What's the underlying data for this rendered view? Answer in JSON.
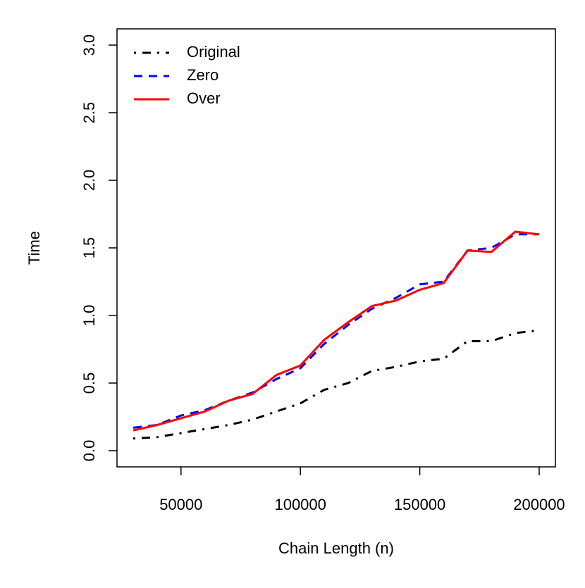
{
  "chart_data": {
    "type": "line",
    "x_label": "Chain Length (n)",
    "y_label": "Time",
    "x": [
      30000,
      40000,
      50000,
      60000,
      70000,
      80000,
      90000,
      100000,
      110000,
      120000,
      130000,
      140000,
      150000,
      160000,
      170000,
      180000,
      190000,
      200000
    ],
    "series": [
      {
        "name": "Original",
        "color": "#000000",
        "dash": "dotdash",
        "values": [
          0.09,
          0.1,
          0.13,
          0.16,
          0.19,
          0.23,
          0.29,
          0.35,
          0.45,
          0.5,
          0.59,
          0.62,
          0.66,
          0.68,
          0.81,
          0.81,
          0.87,
          0.89
        ]
      },
      {
        "name": "Zero",
        "color": "#0000ff",
        "dash": "dashed",
        "values": [
          0.17,
          0.19,
          0.26,
          0.3,
          0.37,
          0.43,
          0.53,
          0.61,
          0.79,
          0.93,
          1.05,
          1.13,
          1.23,
          1.25,
          1.48,
          1.5,
          1.6,
          1.6
        ]
      },
      {
        "name": "Over",
        "color": "#ff0000",
        "dash": "solid",
        "values": [
          0.15,
          0.19,
          0.24,
          0.29,
          0.37,
          0.42,
          0.56,
          0.63,
          0.82,
          0.95,
          1.07,
          1.11,
          1.19,
          1.24,
          1.48,
          1.47,
          1.62,
          1.6
        ]
      }
    ],
    "xlim": [
      23200,
      206800
    ],
    "ylim": [
      -0.12,
      3.12
    ],
    "xticks": [
      50000,
      100000,
      150000,
      200000
    ],
    "yticks": [
      {
        "value": 0,
        "label": "0.0"
      },
      0.5,
      {
        "value": 1,
        "label": "1.0"
      },
      1.5,
      {
        "value": 2,
        "label": "2.0"
      },
      2.5,
      {
        "value": 3,
        "label": "3.0"
      }
    ],
    "legend": "top-left"
  }
}
